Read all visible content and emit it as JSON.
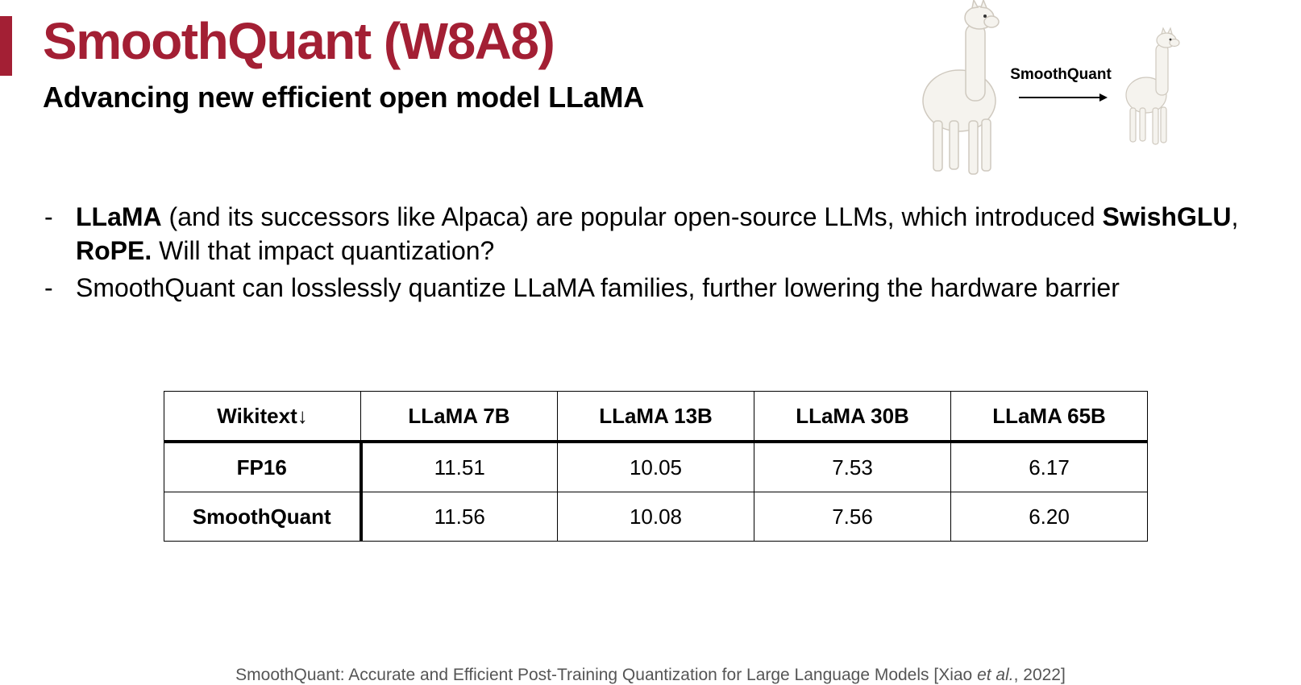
{
  "title": "SmoothQuant (W8A8)",
  "subtitle": "Advancing new efficient open model LLaMA",
  "illustration": {
    "arrow_label": "SmoothQuant"
  },
  "bullets": [
    {
      "dash": "-",
      "parts": [
        {
          "text": "LLaMA",
          "bold": true
        },
        {
          "text": " (and its successors like Alpaca) are popular open-source LLMs, which introduced ",
          "bold": false
        },
        {
          "text": "SwishGLU",
          "bold": true
        },
        {
          "text": ", ",
          "bold": false
        },
        {
          "text": "RoPE.",
          "bold": true
        },
        {
          "text": " Will that impact quantization?",
          "bold": false
        }
      ]
    },
    {
      "dash": "-",
      "parts": [
        {
          "text": "SmoothQuant can losslessly quantize LLaMA families, further lowering the hardware barrier",
          "bold": false
        }
      ]
    }
  ],
  "table": {
    "headers": [
      "Wikitext↓",
      "LLaMA 7B",
      "LLaMA 13B",
      "LLaMA 30B",
      "LLaMA 65B"
    ],
    "rows": [
      {
        "label": "FP16",
        "values": [
          "11.51",
          "10.05",
          "7.53",
          "6.17"
        ]
      },
      {
        "label": "SmoothQuant",
        "values": [
          "11.56",
          "10.08",
          "7.56",
          "6.20"
        ]
      }
    ]
  },
  "citation": {
    "before": "SmoothQuant: Accurate and Efficient Post-Training Quantization for Large Language Models [Xiao ",
    "italic": "et al.",
    "after": ", 2022]"
  },
  "colors": {
    "accent": "#a31f34",
    "citation": "#555555"
  }
}
